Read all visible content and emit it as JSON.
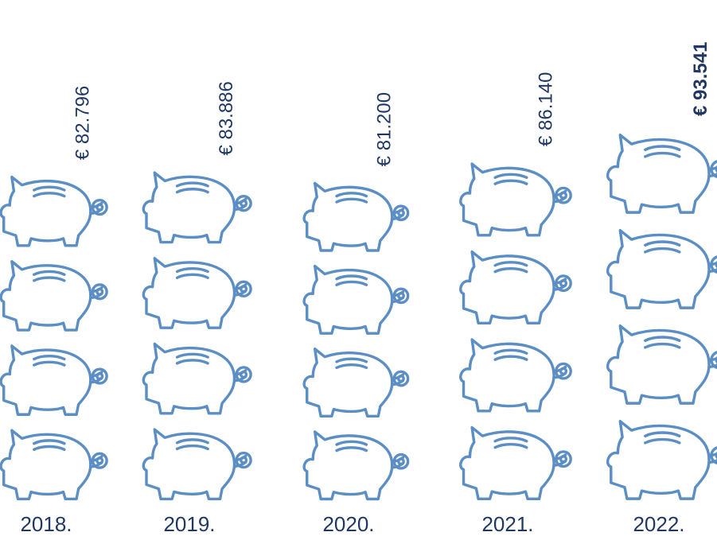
{
  "chart_data": {
    "type": "bar",
    "categories": [
      "2018.",
      "2019.",
      "2020.",
      "2021.",
      "2022."
    ],
    "values": [
      82796,
      83886,
      81200,
      86140,
      93541
    ],
    "value_labels": [
      "€ 82.796",
      "€ 83.886",
      "€ 81.200",
      "€ 86.140",
      "€ 93.541"
    ],
    "highlighted_index": 4,
    "pictogram_icon": "piggy-bank-icon",
    "icons_per_bar": 4,
    "title": "",
    "xlabel": "",
    "ylabel": "",
    "colors": {
      "icon_stroke": "#5b8ec4",
      "label_text": "#1f3864",
      "category_text": "#1f3864"
    }
  }
}
